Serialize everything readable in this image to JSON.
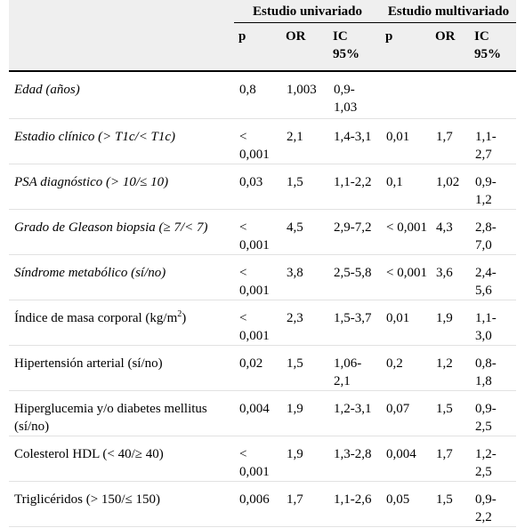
{
  "header": {
    "group_univariate": "Estudio univariado",
    "group_multivariate": "Estudio multivariado",
    "univariate": {
      "p": "p",
      "or": "OR",
      "ic": "IC 95%"
    },
    "multivariate": {
      "p": "p",
      "or": "OR",
      "ic": "IC 95%"
    }
  },
  "rows": [
    {
      "label": "Edad (años)",
      "italic": true,
      "label_sup": "",
      "label_suffix": "",
      "u_p": "0,8",
      "u_or": "1,003",
      "u_ic": "0,9-1,03",
      "m_p": "",
      "m_or": "",
      "m_ic": ""
    },
    {
      "label": "Estadio clínico (> T1c/< T1c)",
      "italic": true,
      "label_sup": "",
      "label_suffix": "",
      "u_p": "< 0,001",
      "u_or": "2,1",
      "u_ic": "1,4-3,1",
      "m_p": "0,01",
      "m_or": "1,7",
      "m_ic": "1,1-2,7"
    },
    {
      "label": "PSA diagnóstico (> 10/≤ 10)",
      "italic": true,
      "label_sup": "",
      "label_suffix": "",
      "u_p": "0,03",
      "u_or": "1,5",
      "u_ic": "1,1-2,2",
      "m_p": "0,1",
      "m_or": "1,02",
      "m_ic": "0,9-1,2"
    },
    {
      "label": "Grado de Gleason biopsia (≥ 7/< 7)",
      "italic": true,
      "label_sup": "",
      "label_suffix": "",
      "u_p": "< 0,001",
      "u_or": "4,5",
      "u_ic": "2,9-7,2",
      "m_p": "< 0,001",
      "m_or": "4,3",
      "m_ic": "2,8-7,0"
    },
    {
      "label": "Síndrome metabólico (sí/no)",
      "italic": true,
      "label_sup": "",
      "label_suffix": "",
      "u_p": "< 0,001",
      "u_or": "3,8",
      "u_ic": "2,5-5,8",
      "m_p": "< 0,001",
      "m_or": "3,6",
      "m_ic": "2,4-5,6"
    },
    {
      "label": "Índice de masa corporal (kg/m",
      "italic": false,
      "label_sup": "2",
      "label_suffix": ")",
      "u_p": "< 0,001",
      "u_or": "2,3",
      "u_ic": "1,5-3,7",
      "m_p": "0,01",
      "m_or": "1,9",
      "m_ic": "1,1-3,0"
    },
    {
      "label": "Hipertensión arterial (sí/no)",
      "italic": false,
      "label_sup": "",
      "label_suffix": "",
      "u_p": "0,02",
      "u_or": "1,5",
      "u_ic": "1,06-2,1",
      "m_p": "0,2",
      "m_or": "1,2",
      "m_ic": "0,8-1,8"
    },
    {
      "label": "Hiperglucemia y/o diabetes mellitus (sí/no)",
      "italic": false,
      "label_sup": "",
      "label_suffix": "",
      "u_p": "0,004",
      "u_or": "1,9",
      "u_ic": "1,2-3,1",
      "m_p": "0,07",
      "m_or": "1,5",
      "m_ic": "0,9-2,5"
    },
    {
      "label": "Colesterol HDL (< 40/≥ 40)",
      "italic": false,
      "label_sup": "",
      "label_suffix": "",
      "u_p": "< 0,001",
      "u_or": "1,9",
      "u_ic": "1,3-2,8",
      "m_p": "0,004",
      "m_or": "1,7",
      "m_ic": "1,2-2,5"
    },
    {
      "label": "Triglicéridos (> 150/≤ 150)",
      "italic": false,
      "label_sup": "",
      "label_suffix": "",
      "u_p": "0,006",
      "u_or": "1,7",
      "u_ic": "1,1-2,6",
      "m_p": "0,05",
      "m_or": "1,5",
      "m_ic": "0,9-2,2"
    }
  ]
}
